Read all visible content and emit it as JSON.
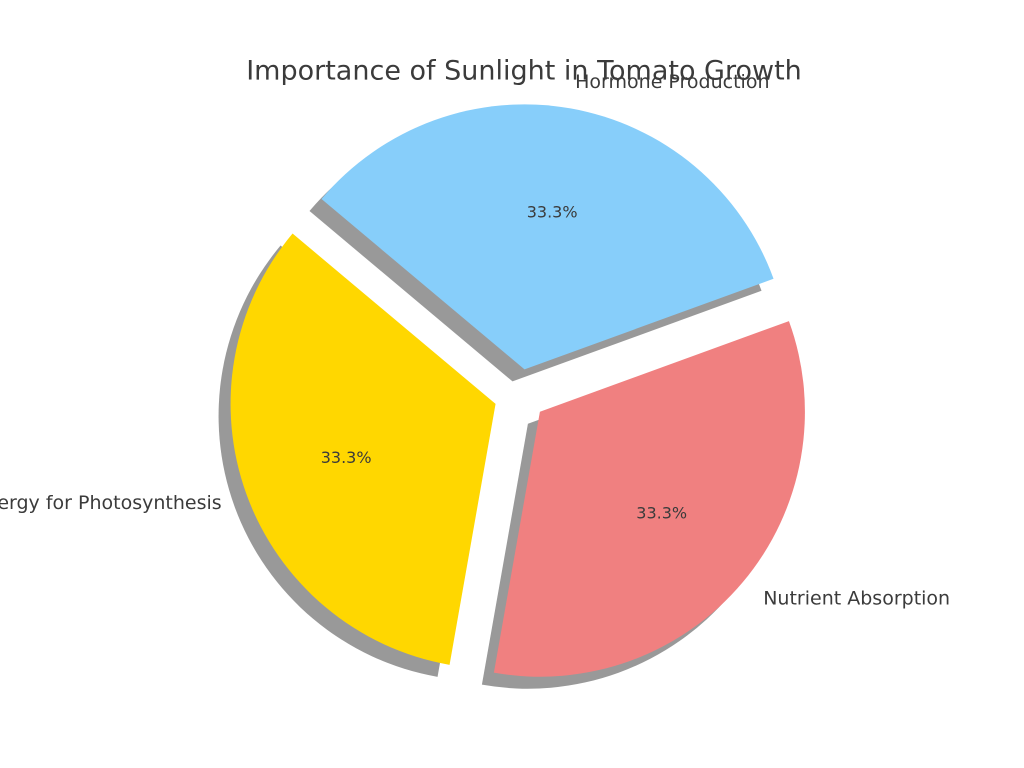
{
  "chart_data": {
    "type": "pie",
    "title": "Importance of Sunlight in Tomato Growth",
    "categories": [
      "Energy for Photosynthesis",
      "Nutrient Absorption",
      "Hormone Production"
    ],
    "values": [
      33.3,
      33.3,
      33.3
    ],
    "value_labels": [
      "33.3%",
      "33.3%",
      "33.3%"
    ],
    "colors": [
      "#ffd700",
      "#f08080",
      "#87cefa"
    ]
  }
}
